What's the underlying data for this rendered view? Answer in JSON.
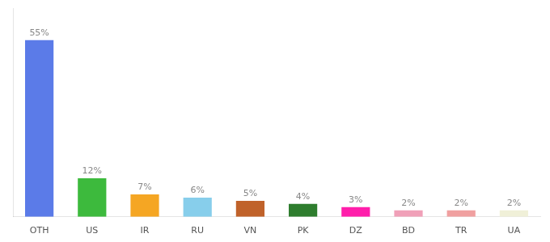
{
  "chart_data": {
    "type": "bar",
    "categories": [
      "OTH",
      "US",
      "IR",
      "RU",
      "VN",
      "PK",
      "DZ",
      "BD",
      "TR",
      "UA"
    ],
    "values": [
      55,
      12,
      7,
      6,
      5,
      4,
      3,
      2,
      2,
      2
    ],
    "value_labels": [
      "55%",
      "12%",
      "7%",
      "6%",
      "5%",
      "4%",
      "3%",
      "2%",
      "2%",
      "2%"
    ],
    "colors": [
      "#5b7be8",
      "#3dba3d",
      "#f5a623",
      "#87ceeb",
      "#c0622a",
      "#2e7d2e",
      "#ff1eab",
      "#f0a0b8",
      "#f0a0a0",
      "#f0f0d8"
    ],
    "ylim": [
      0,
      65
    ],
    "data_labels": true,
    "tick_labels": "x",
    "grid": false
  }
}
